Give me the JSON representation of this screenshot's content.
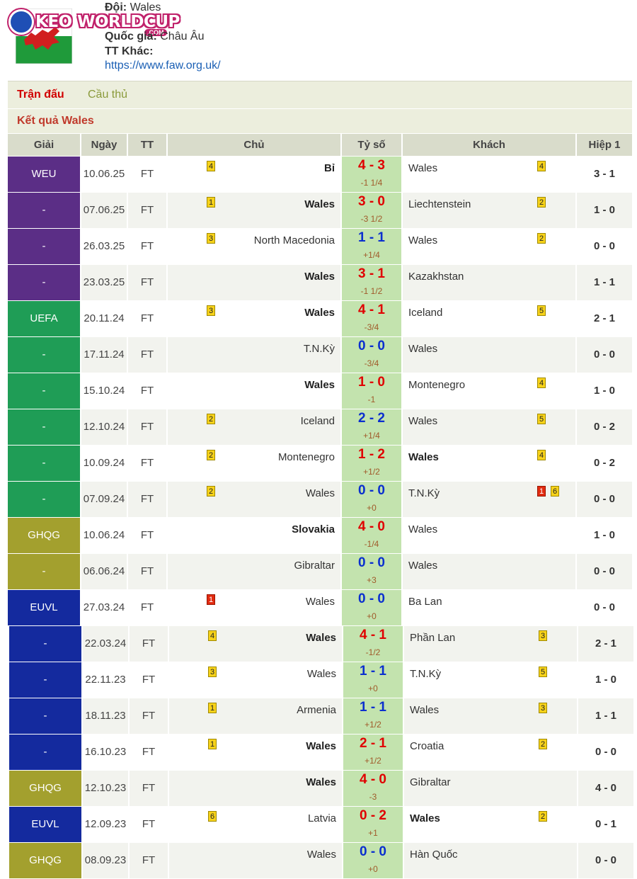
{
  "team_info": {
    "team_label": "Đội:",
    "team_value": "Wales",
    "country_label": "Quốc gia:",
    "country_value": "Châu Âu",
    "other_label": "TT Khác:",
    "website": "https://www.faw.org.uk/"
  },
  "logo": {
    "text": "KEO WORLDCUP",
    "suffix": ".COM"
  },
  "tabs": [
    {
      "label": "Trận đấu",
      "active": true
    },
    {
      "label": "Cầu thủ",
      "active": false
    }
  ],
  "section_title": "Kết quả Wales",
  "columns": [
    "Giải",
    "Ngày",
    "TT",
    "Chủ",
    "Tỷ số",
    "Khách",
    "Hiệp 1"
  ],
  "league_colors": {
    "WEU": "#5b2e86",
    "UEFA": "#1f9d56",
    "GHQG": "#a3a02e",
    "EUVL": "#142a9e"
  },
  "rows": [
    {
      "league": "WEU",
      "league_group": "WEU",
      "date": "10.06.25",
      "status": "FT",
      "home": "Bỉ",
      "home_bold": true,
      "home_card": "4",
      "home_card_red": false,
      "score": "4 - 3",
      "result": "win",
      "handicap": "-1 1/4",
      "away": "Wales",
      "away_bold": false,
      "away_cards": [
        {
          "n": "4",
          "red": false
        }
      ],
      "half": "3 - 1"
    },
    {
      "league": "-",
      "league_group": "WEU",
      "date": "07.06.25",
      "status": "FT",
      "home": "Wales",
      "home_bold": true,
      "home_card": "1",
      "home_card_red": false,
      "score": "3 - 0",
      "result": "win",
      "handicap": "-3 1/2",
      "away": "Liechtenstein",
      "away_bold": false,
      "away_cards": [
        {
          "n": "2",
          "red": false
        }
      ],
      "half": "1 - 0"
    },
    {
      "league": "-",
      "league_group": "WEU",
      "date": "26.03.25",
      "status": "FT",
      "home": "North Macedonia",
      "home_bold": false,
      "home_card": "3",
      "home_card_red": false,
      "score": "1 - 1",
      "result": "draw",
      "handicap": "+1/4",
      "away": "Wales",
      "away_bold": false,
      "away_cards": [
        {
          "n": "2",
          "red": false
        }
      ],
      "half": "0 - 0"
    },
    {
      "league": "-",
      "league_group": "WEU",
      "date": "23.03.25",
      "status": "FT",
      "home": "Wales",
      "home_bold": true,
      "home_card": "",
      "home_card_red": false,
      "score": "3 - 1",
      "result": "win",
      "handicap": "-1 1/2",
      "away": "Kazakhstan",
      "away_bold": false,
      "away_cards": [],
      "half": "1 - 1"
    },
    {
      "league": "UEFA",
      "league_group": "UEFA",
      "date": "20.11.24",
      "status": "FT",
      "home": "Wales",
      "home_bold": true,
      "home_card": "3",
      "home_card_red": false,
      "score": "4 - 1",
      "result": "win",
      "handicap": "-3/4",
      "away": "Iceland",
      "away_bold": false,
      "away_cards": [
        {
          "n": "5",
          "red": false
        }
      ],
      "half": "2 - 1"
    },
    {
      "league": "-",
      "league_group": "UEFA",
      "date": "17.11.24",
      "status": "FT",
      "home": "T.N.Kỳ",
      "home_bold": false,
      "home_card": "",
      "home_card_red": false,
      "score": "0 - 0",
      "result": "draw",
      "handicap": "-3/4",
      "away": "Wales",
      "away_bold": false,
      "away_cards": [],
      "half": "0 - 0"
    },
    {
      "league": "-",
      "league_group": "UEFA",
      "date": "15.10.24",
      "status": "FT",
      "home": "Wales",
      "home_bold": true,
      "home_card": "",
      "home_card_red": false,
      "score": "1 - 0",
      "result": "win",
      "handicap": "-1",
      "away": "Montenegro",
      "away_bold": false,
      "away_cards": [
        {
          "n": "4",
          "red": false
        }
      ],
      "half": "1 - 0"
    },
    {
      "league": "-",
      "league_group": "UEFA",
      "date": "12.10.24",
      "status": "FT",
      "home": "Iceland",
      "home_bold": false,
      "home_card": "2",
      "home_card_red": false,
      "score": "2 - 2",
      "result": "draw",
      "handicap": "+1/4",
      "away": "Wales",
      "away_bold": false,
      "away_cards": [
        {
          "n": "5",
          "red": false
        }
      ],
      "half": "0 - 2"
    },
    {
      "league": "-",
      "league_group": "UEFA",
      "date": "10.09.24",
      "status": "FT",
      "home": "Montenegro",
      "home_bold": false,
      "home_card": "2",
      "home_card_red": false,
      "score": "1 - 2",
      "result": "win",
      "handicap": "+1/2",
      "away": "Wales",
      "away_bold": true,
      "away_cards": [
        {
          "n": "4",
          "red": false
        }
      ],
      "half": "0 - 2"
    },
    {
      "league": "-",
      "league_group": "UEFA",
      "date": "07.09.24",
      "status": "FT",
      "home": "Wales",
      "home_bold": false,
      "home_card": "2",
      "home_card_red": false,
      "score": "0 - 0",
      "result": "draw",
      "handicap": "+0",
      "away": "T.N.Kỳ",
      "away_bold": false,
      "away_cards": [
        {
          "n": "1",
          "red": true
        },
        {
          "n": "6",
          "red": false
        }
      ],
      "half": "0 - 0"
    },
    {
      "league": "GHQG",
      "league_group": "GHQG",
      "date": "10.06.24",
      "status": "FT",
      "home": "Slovakia",
      "home_bold": true,
      "home_card": "",
      "home_card_red": false,
      "score": "4 - 0",
      "result": "win",
      "handicap": "-1/4",
      "away": "Wales",
      "away_bold": false,
      "away_cards": [],
      "half": "1 - 0"
    },
    {
      "league": "-",
      "league_group": "GHQG",
      "date": "06.06.24",
      "status": "FT",
      "home": "Gibraltar",
      "home_bold": false,
      "home_card": "",
      "home_card_red": false,
      "score": "0 - 0",
      "result": "draw",
      "handicap": "+3",
      "away": "Wales",
      "away_bold": false,
      "away_cards": [],
      "half": "0 - 0"
    },
    {
      "league": "EUVL",
      "league_group": "EUVL",
      "date": "27.03.24",
      "status": "FT",
      "home": "Wales",
      "home_bold": false,
      "home_card": "1",
      "home_card_red": true,
      "score": "0 - 0",
      "result": "draw",
      "handicap": "+0",
      "away": "Ba Lan",
      "away_bold": false,
      "away_cards": [],
      "half": "0 - 0"
    },
    {
      "league": "-",
      "league_group": "EUVL",
      "date": "22.03.24",
      "status": "FT",
      "home": "Wales",
      "home_bold": true,
      "home_card": "4",
      "home_card_red": false,
      "score": "4 - 1",
      "result": "win",
      "handicap": "-1/2",
      "away": "Phần Lan",
      "away_bold": false,
      "away_cards": [
        {
          "n": "3",
          "red": false
        }
      ],
      "half": "2 - 1"
    },
    {
      "league": "-",
      "league_group": "EUVL",
      "date": "22.11.23",
      "status": "FT",
      "home": "Wales",
      "home_bold": false,
      "home_card": "3",
      "home_card_red": false,
      "score": "1 - 1",
      "result": "draw",
      "handicap": "+0",
      "away": "T.N.Kỳ",
      "away_bold": false,
      "away_cards": [
        {
          "n": "5",
          "red": false
        }
      ],
      "half": "1 - 0"
    },
    {
      "league": "-",
      "league_group": "EUVL",
      "date": "18.11.23",
      "status": "FT",
      "home": "Armenia",
      "home_bold": false,
      "home_card": "1",
      "home_card_red": false,
      "score": "1 - 1",
      "result": "draw",
      "handicap": "+1/2",
      "away": "Wales",
      "away_bold": false,
      "away_cards": [
        {
          "n": "3",
          "red": false
        }
      ],
      "half": "1 - 1"
    },
    {
      "league": "-",
      "league_group": "EUVL",
      "date": "16.10.23",
      "status": "FT",
      "home": "Wales",
      "home_bold": true,
      "home_card": "1",
      "home_card_red": false,
      "score": "2 - 1",
      "result": "win",
      "handicap": "+1/2",
      "away": "Croatia",
      "away_bold": false,
      "away_cards": [
        {
          "n": "2",
          "red": false
        }
      ],
      "half": "0 - 0"
    },
    {
      "league": "GHQG",
      "league_group": "GHQG",
      "date": "12.10.23",
      "status": "FT",
      "home": "Wales",
      "home_bold": true,
      "home_card": "",
      "home_card_red": false,
      "score": "4 - 0",
      "result": "win",
      "handicap": "-3",
      "away": "Gibraltar",
      "away_bold": false,
      "away_cards": [],
      "half": "4 - 0"
    },
    {
      "league": "EUVL",
      "league_group": "EUVL",
      "date": "12.09.23",
      "status": "FT",
      "home": "Latvia",
      "home_bold": false,
      "home_card": "6",
      "home_card_red": false,
      "score": "0 - 2",
      "result": "win",
      "handicap": "+1",
      "away": "Wales",
      "away_bold": true,
      "away_cards": [
        {
          "n": "2",
          "red": false
        }
      ],
      "half": "0 - 1"
    },
    {
      "league": "GHQG",
      "league_group": "GHQG",
      "date": "08.09.23",
      "status": "FT",
      "home": "Wales",
      "home_bold": false,
      "home_card": "",
      "home_card_red": false,
      "score": "0 - 0",
      "result": "draw",
      "handicap": "+0",
      "away": "Hàn Quốc",
      "away_bold": false,
      "away_cards": [],
      "half": "0 - 0"
    }
  ]
}
